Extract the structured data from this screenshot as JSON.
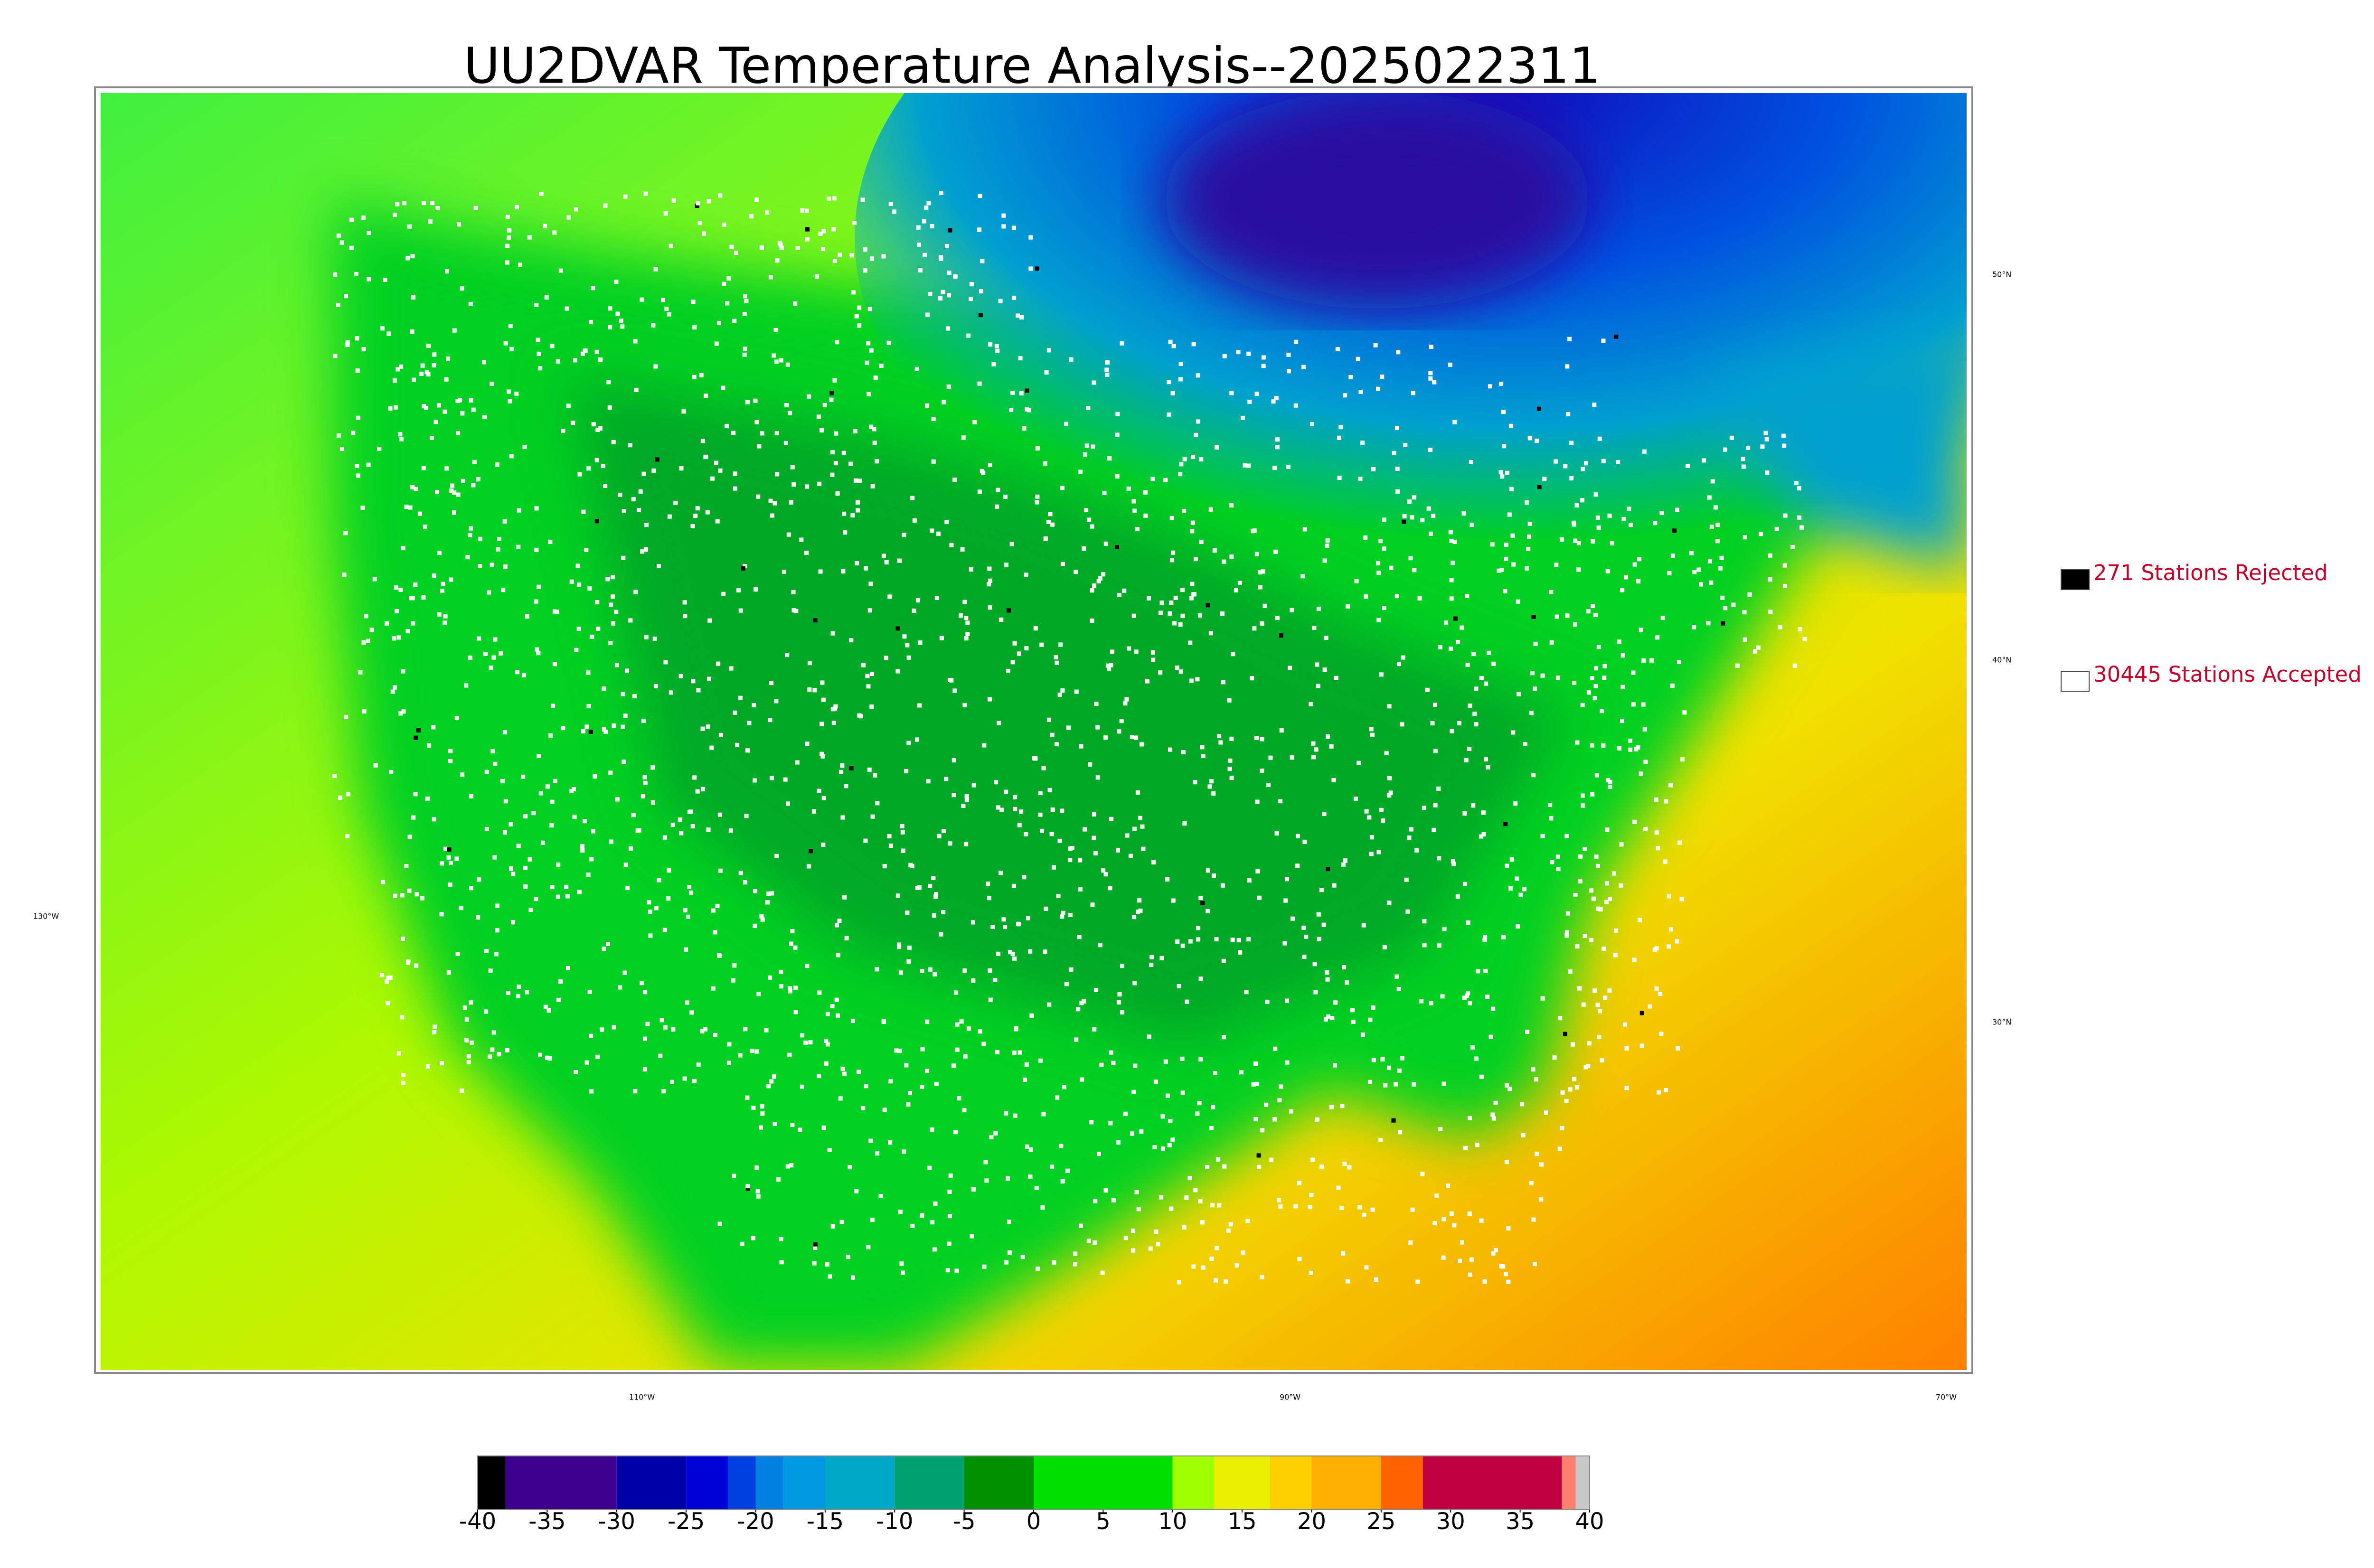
{
  "title": "UU2DVAR Temperature Analysis--2025022311",
  "map": {
    "lat_labels": [
      "50°N",
      "40°N",
      "30°N"
    ],
    "lon_labels": [
      "130°W",
      "110°W",
      "90°W",
      "70°W"
    ]
  },
  "legend": [
    {
      "label": "271 Stations Rejected",
      "color": "#000000"
    },
    {
      "label": "30445 Stations Accepted",
      "color": "#ffffff"
    }
  ],
  "colorbar": {
    "range": [
      -40,
      40
    ],
    "ticks": [
      -40,
      -35,
      -30,
      -25,
      -20,
      -15,
      -10,
      -5,
      0,
      5,
      10,
      15,
      20,
      25,
      30,
      35,
      40
    ],
    "bounds": [
      -40,
      -38,
      -30,
      -25,
      -22,
      -20,
      -18,
      -15,
      -10,
      -5,
      0,
      10,
      13,
      17,
      20,
      25,
      28,
      38,
      39,
      40
    ],
    "colors": [
      "#000000",
      "#3c008c",
      "#0000a8",
      "#0000d8",
      "#0040e0",
      "#0080e0",
      "#0098e0",
      "#00a8c8",
      "#00a070",
      "#009000",
      "#00e000",
      "#a0ff00",
      "#e8f000",
      "#ffd000",
      "#ffb000",
      "#ff6000",
      "#c00040",
      "#ff8070",
      "#c8c8c8"
    ]
  }
}
